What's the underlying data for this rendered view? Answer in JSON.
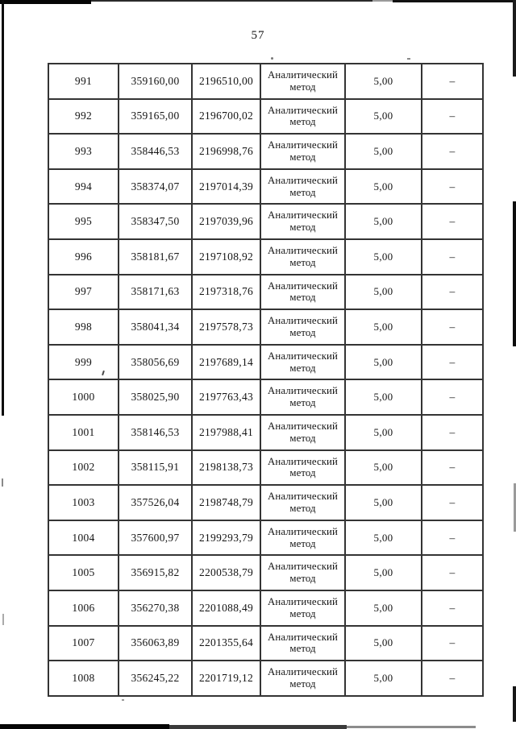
{
  "page": {
    "number": "57"
  },
  "colors": {
    "ink": "#141414",
    "paper": "#ffffff",
    "table_border": "#343434"
  },
  "table": {
    "method_label": "Аналитический метод",
    "rows": [
      {
        "n": "991",
        "x": "359160,00",
        "y": "2196510,00",
        "method": "Аналитический метод",
        "accuracy": "5,00",
        "note": "–"
      },
      {
        "n": "992",
        "x": "359165,00",
        "y": "2196700,02",
        "method": "Аналитический метод",
        "accuracy": "5,00",
        "note": "–"
      },
      {
        "n": "993",
        "x": "358446,53",
        "y": "2196998,76",
        "method": "Аналитический метод",
        "accuracy": "5,00",
        "note": "–"
      },
      {
        "n": "994",
        "x": "358374,07",
        "y": "2197014,39",
        "method": "Аналитический метод",
        "accuracy": "5,00",
        "note": "–"
      },
      {
        "n": "995",
        "x": "358347,50",
        "y": "2197039,96",
        "method": "Аналитический метод",
        "accuracy": "5,00",
        "note": "–"
      },
      {
        "n": "996",
        "x": "358181,67",
        "y": "2197108,92",
        "method": "Аналитический метод",
        "accuracy": "5,00",
        "note": "–"
      },
      {
        "n": "997",
        "x": "358171,63",
        "y": "2197318,76",
        "method": "Аналитический метод",
        "accuracy": "5,00",
        "note": "–"
      },
      {
        "n": "998",
        "x": "358041,34",
        "y": "2197578,73",
        "method": "Аналитический метод",
        "accuracy": "5,00",
        "note": "–"
      },
      {
        "n": "999",
        "x": "358056,69",
        "y": "2197689,14",
        "method": "Аналитический метод",
        "accuracy": "5,00",
        "note": "–"
      },
      {
        "n": "1000",
        "x": "358025,90",
        "y": "2197763,43",
        "method": "Аналитический метод",
        "accuracy": "5,00",
        "note": "–"
      },
      {
        "n": "1001",
        "x": "358146,53",
        "y": "2197988,41",
        "method": "Аналитический метод",
        "accuracy": "5,00",
        "note": "–"
      },
      {
        "n": "1002",
        "x": "358115,91",
        "y": "2198138,73",
        "method": "Аналитический метод",
        "accuracy": "5,00",
        "note": "–"
      },
      {
        "n": "1003",
        "x": "357526,04",
        "y": "2198748,79",
        "method": "Аналитический метод",
        "accuracy": "5,00",
        "note": "–"
      },
      {
        "n": "1004",
        "x": "357600,97",
        "y": "2199293,79",
        "method": "Аналитический метод",
        "accuracy": "5,00",
        "note": "–"
      },
      {
        "n": "1005",
        "x": "356915,82",
        "y": "2200538,79",
        "method": "Аналитический метод",
        "accuracy": "5,00",
        "note": "–"
      },
      {
        "n": "1006",
        "x": "356270,38",
        "y": "2201088,49",
        "method": "Аналитический метод",
        "accuracy": "5,00",
        "note": "–"
      },
      {
        "n": "1007",
        "x": "356063,89",
        "y": "2201355,64",
        "method": "Аналитический метод",
        "accuracy": "5,00",
        "note": "–"
      },
      {
        "n": "1008",
        "x": "356245,22",
        "y": "2201719,12",
        "method": "Аналитический метод",
        "accuracy": "5,00",
        "note": "–"
      }
    ]
  }
}
